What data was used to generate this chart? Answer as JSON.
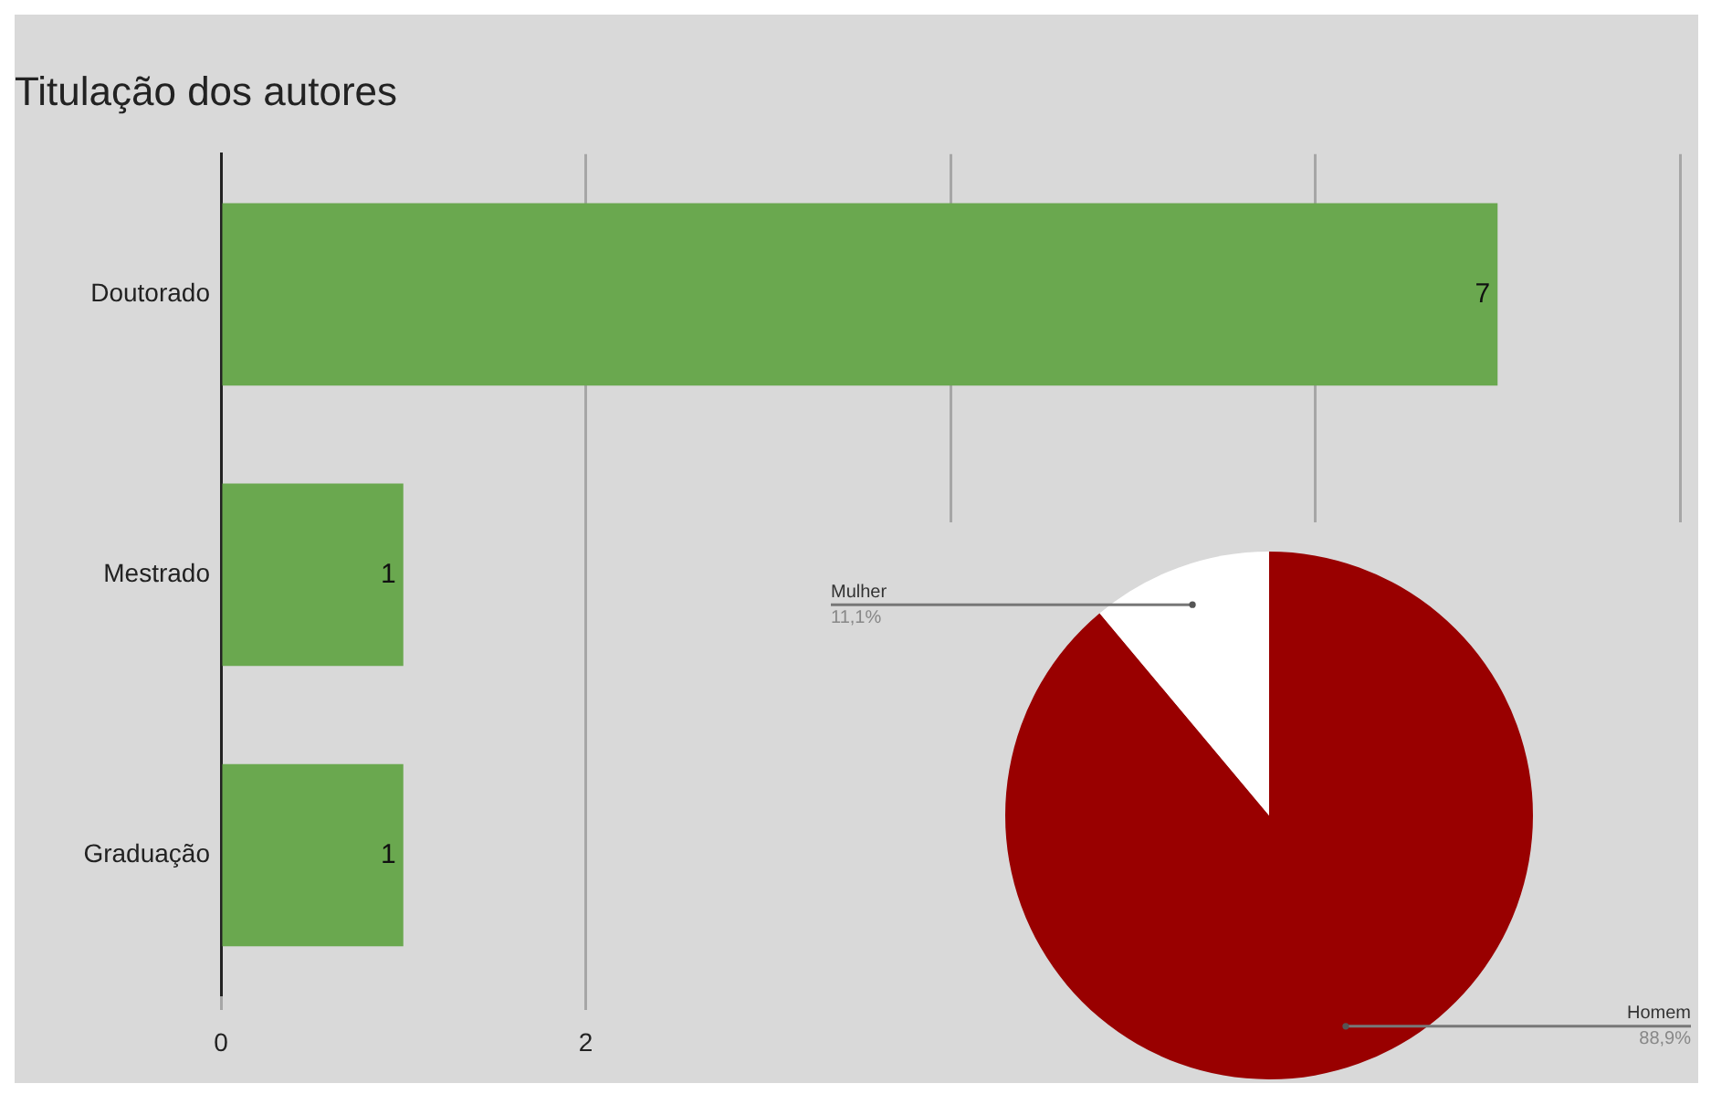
{
  "chart_data": [
    {
      "type": "bar",
      "orientation": "horizontal",
      "title": "Titulação dos autores",
      "categories": [
        "Doutorado",
        "Mestrado",
        "Graduação"
      ],
      "values": [
        7,
        1,
        1
      ],
      "color": "#6aa84f",
      "xlim": [
        0,
        8
      ],
      "xticks": [
        0,
        2,
        {
          "value": 4,
          "label": null
        },
        {
          "value": 6,
          "label": null
        },
        {
          "value": 8,
          "label": null
        }
      ],
      "grid": "x",
      "data_labels": true
    },
    {
      "type": "pie",
      "categories": [
        "Homem",
        "Mulher"
      ],
      "values": [
        88.9,
        11.1
      ],
      "colors": [
        "#990000",
        "#ffffff"
      ],
      "value_labels": [
        "88,9%",
        "11,1%"
      ]
    }
  ]
}
